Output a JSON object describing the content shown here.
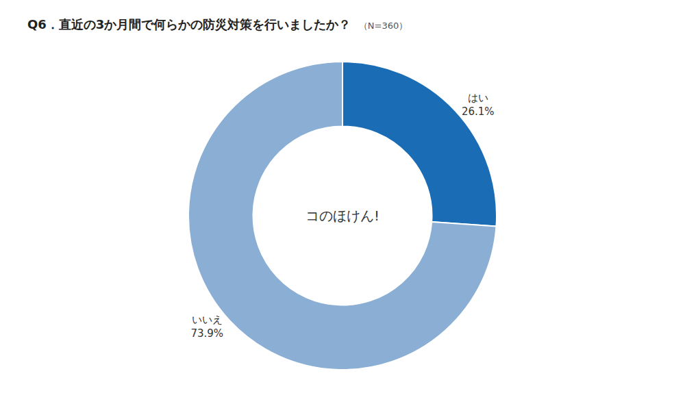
{
  "chart_data": {
    "type": "pie",
    "title": "Q6．直近の3か月間で何らかの防災対策を行いましたか？",
    "subtitle": "（N=360）",
    "categories": [
      "はい",
      "いいえ"
    ],
    "values": [
      26.1,
      73.9
    ],
    "value_labels": [
      "26.1%",
      "73.9%"
    ],
    "data_labels": true,
    "colors": [
      "#1a6db5",
      "#8aaed4"
    ],
    "annotations": [
      "コのほけん!"
    ]
  }
}
